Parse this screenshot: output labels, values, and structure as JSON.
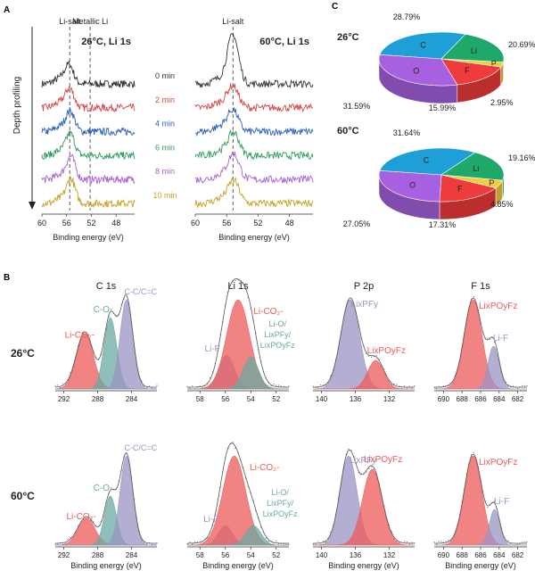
{
  "panel_labels": {
    "A": "A",
    "B": "B",
    "C": "C"
  },
  "chart_data": [
    {
      "id": "A1",
      "type": "line",
      "title": "26°C, Li 1s",
      "xlabel": "Binding energy (eV)",
      "ylabel": "Depth profiling",
      "xlim": [
        60,
        45
      ],
      "xticks": [
        60,
        56,
        52,
        48
      ],
      "reference_lines": [
        {
          "name": "Li-salt",
          "x": 55.5
        },
        {
          "name": "Metallic Li",
          "x": 52.2
        }
      ],
      "series": [
        {
          "name": "0 min",
          "color": "#333333",
          "peak": 55.6,
          "amp": 0.3,
          "shoulder": 0.0
        },
        {
          "name": "2 min",
          "color": "#d64545",
          "peak": 55.5,
          "amp": 0.3,
          "shoulder": 0.0
        },
        {
          "name": "4 min",
          "color": "#2b5fbd",
          "peak": 55.4,
          "amp": 0.32,
          "shoulder": 0.0
        },
        {
          "name": "6 min",
          "color": "#2e9a5c",
          "peak": 55.4,
          "amp": 0.34,
          "shoulder": 0.0
        },
        {
          "name": "8 min",
          "color": "#a660d6",
          "peak": 55.3,
          "amp": 0.36,
          "shoulder": 0.0
        },
        {
          "name": "10 min",
          "color": "#c8a020",
          "peak": 55.3,
          "amp": 0.38,
          "shoulder": 0.0
        }
      ]
    },
    {
      "id": "A2",
      "type": "line",
      "title": "60°C, Li 1s",
      "xlabel": "Binding energy (eV)",
      "xlim": [
        60,
        45
      ],
      "xticks": [
        60,
        56,
        52,
        48
      ],
      "reference_lines": [
        {
          "name": "Li-salt",
          "x": 55.2
        }
      ],
      "series": [
        {
          "name": "0 min",
          "color": "#333333",
          "peak": 55.2,
          "amp": 0.78
        },
        {
          "name": "2 min",
          "color": "#d64545",
          "peak": 55.2,
          "amp": 0.34
        },
        {
          "name": "4 min",
          "color": "#2b5fbd",
          "peak": 55.2,
          "amp": 0.34
        },
        {
          "name": "6 min",
          "color": "#2e9a5c",
          "peak": 55.1,
          "amp": 0.36
        },
        {
          "name": "8 min",
          "color": "#a660d6",
          "peak": 55.1,
          "amp": 0.4
        },
        {
          "name": "10 min",
          "color": "#c8a020",
          "peak": 55.1,
          "amp": 0.36
        }
      ]
    },
    {
      "id": "C1",
      "type": "pie",
      "title": "26°C",
      "slices": [
        {
          "label": "C",
          "value": 28.79,
          "value_label": "28.79%",
          "color": "#1f9fd8"
        },
        {
          "label": "Li",
          "value": 20.69,
          "value_label": "20.69%",
          "color": "#1ea96a"
        },
        {
          "label": "P",
          "value": 2.95,
          "value_label": "2.95%",
          "color": "#f2cd3a"
        },
        {
          "label": "F",
          "value": 15.99,
          "value_label": "15.99%",
          "color": "#ee3b3b"
        },
        {
          "label": "O",
          "value": 31.59,
          "value_label": "31.59%",
          "color": "#a761e0"
        }
      ]
    },
    {
      "id": "C2",
      "type": "pie",
      "title": "60°C",
      "slices": [
        {
          "label": "C",
          "value": 31.64,
          "value_label": "31.64%",
          "color": "#1f9fd8"
        },
        {
          "label": "Li",
          "value": 19.16,
          "value_label": "19.16%",
          "color": "#1ea96a"
        },
        {
          "label": "P",
          "value": 4.85,
          "value_label": "4.85%",
          "color": "#f2cd3a"
        },
        {
          "label": "F",
          "value": 17.31,
          "value_label": "17.31%",
          "color": "#ee3b3b"
        },
        {
          "label": "O",
          "value": 27.05,
          "value_label": "27.05%",
          "color": "#a761e0"
        }
      ]
    },
    {
      "id": "B",
      "type": "line",
      "row_labels": [
        "26°C",
        "60°C"
      ],
      "xlabel": "Binding energy (eV)",
      "columns": [
        {
          "title": "C 1s",
          "xlim": [
            293,
            281
          ],
          "xticks": [
            292,
            288,
            284
          ],
          "rows": [
            {
              "components": [
                {
                  "label": "Li-CO₂-",
                  "center": 289.5,
                  "height": 0.62,
                  "width": 1.0,
                  "color": "#ee5a5a"
                },
                {
                  "label": "C-O",
                  "center": 286.5,
                  "height": 0.8,
                  "width": 0.75,
                  "color": "#6aa9a0"
                },
                {
                  "label": "C-C/C=C",
                  "center": 284.6,
                  "height": 1.0,
                  "width": 0.75,
                  "color": "#9a94c4"
                }
              ]
            },
            {
              "components": [
                {
                  "label": "Li-CO₂-",
                  "center": 289.3,
                  "height": 0.3,
                  "width": 1.0,
                  "color": "#ee5a5a"
                },
                {
                  "label": "C-O",
                  "center": 286.5,
                  "height": 0.55,
                  "width": 0.7,
                  "color": "#6aa9a0"
                },
                {
                  "label": "C-C/C=C",
                  "center": 284.6,
                  "height": 1.0,
                  "width": 0.75,
                  "color": "#9a94c4"
                }
              ]
            }
          ]
        },
        {
          "title": "Li 1s",
          "xlim": [
            59,
            51
          ],
          "xticks": [
            58,
            56,
            54,
            52
          ],
          "rows": [
            {
              "components": [
                {
                  "label": "Li-F",
                  "center": 55.9,
                  "height": 0.38,
                  "width": 0.6,
                  "color": "#9a94c4"
                },
                {
                  "label": "Li-CO₂-",
                  "center": 55.0,
                  "height": 1.0,
                  "width": 0.9,
                  "color": "#ee5a5a"
                },
                {
                  "label": "Li-O/ LixPFy/ LixPOyFz",
                  "center": 54.0,
                  "height": 0.36,
                  "width": 0.6,
                  "color": "#6aa9a0"
                }
              ]
            },
            {
              "components": [
                {
                  "label": "Li-F",
                  "center": 56.0,
                  "height": 0.22,
                  "width": 0.55,
                  "color": "#9a94c4"
                },
                {
                  "label": "Li-CO₂-",
                  "center": 55.3,
                  "height": 1.0,
                  "width": 0.9,
                  "color": "#ee5a5a"
                },
                {
                  "label": "Li-O/ LixPFy/ LixPOyFz",
                  "center": 53.8,
                  "height": 0.22,
                  "width": 0.6,
                  "color": "#6aa9a0"
                }
              ]
            }
          ]
        },
        {
          "title": "P 2p",
          "xlim": [
            141,
            129
          ],
          "xticks": [
            140,
            136,
            132
          ],
          "rows": [
            {
              "components": [
                {
                  "label": "LixPFy",
                  "center": 136.6,
                  "height": 1.0,
                  "width": 1.1,
                  "color": "#9a94c4"
                },
                {
                  "label": "LixPOyFz",
                  "center": 133.6,
                  "height": 0.32,
                  "width": 0.95,
                  "color": "#ee5a5a"
                }
              ]
            },
            {
              "components": [
                {
                  "label": "LixPFy",
                  "center": 136.8,
                  "height": 1.0,
                  "width": 1.0,
                  "color": "#9a94c4"
                },
                {
                  "label": "LixPOyFz",
                  "center": 134.0,
                  "height": 0.85,
                  "width": 1.15,
                  "color": "#ee5a5a"
                }
              ]
            }
          ]
        },
        {
          "title": "F 1s",
          "xlim": [
            691,
            681
          ],
          "xticks": [
            690,
            688,
            686,
            684,
            682
          ],
          "rows": [
            {
              "components": [
                {
                  "label": "LixPOyFz",
                  "center": 686.8,
                  "height": 1.0,
                  "width": 0.95,
                  "color": "#ee5a5a"
                },
                {
                  "label": "Li-F",
                  "center": 684.6,
                  "height": 0.48,
                  "width": 0.6,
                  "color": "#9a94c4"
                }
              ]
            },
            {
              "components": [
                {
                  "label": "LixPOyFz",
                  "center": 686.8,
                  "height": 1.0,
                  "width": 0.95,
                  "color": "#ee5a5a"
                },
                {
                  "label": "Li-F",
                  "center": 684.5,
                  "height": 0.4,
                  "width": 0.55,
                  "color": "#9a94c4"
                }
              ]
            }
          ]
        }
      ]
    }
  ]
}
